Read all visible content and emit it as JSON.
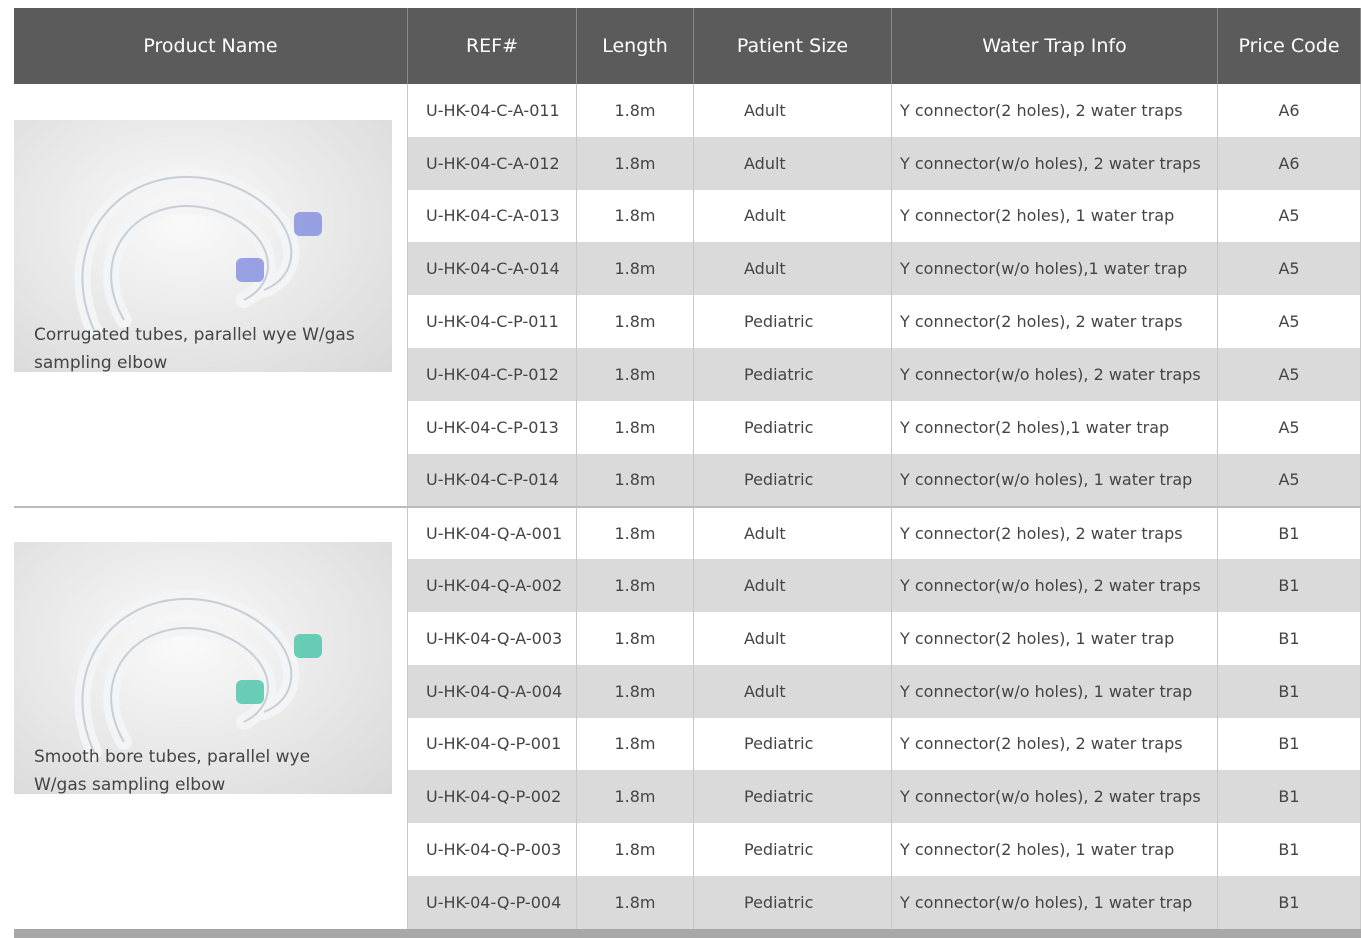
{
  "header": {
    "columns": [
      "Product Name",
      "REF#",
      "Length",
      "Patient Size",
      "Water Trap Info",
      "Price Code"
    ]
  },
  "groups": [
    {
      "description": "Corrugated tubes, parallel wye W/gas sampling elbow",
      "rows": [
        [
          "U-HK-04-C-A-011",
          "1.8m",
          "Adult",
          "Y connector(2 holes), 2 water traps",
          "A6"
        ],
        [
          "U-HK-04-C-A-012",
          "1.8m",
          "Adult",
          "Y connector(w/o holes), 2 water traps",
          "A6"
        ],
        [
          "U-HK-04-C-A-013",
          "1.8m",
          "Adult",
          "Y connector(2 holes), 1 water trap",
          "A5"
        ],
        [
          "U-HK-04-C-A-014",
          "1.8m",
          "Adult",
          "Y connector(w/o holes),1 water trap",
          "A5"
        ],
        [
          "U-HK-04-C-P-011",
          "1.8m",
          "Pediatric",
          "Y connector(2 holes), 2 water traps",
          "A5"
        ],
        [
          "U-HK-04-C-P-012",
          "1.8m",
          "Pediatric",
          "Y connector(w/o holes), 2 water traps",
          "A5"
        ],
        [
          "U-HK-04-C-P-013",
          "1.8m",
          "Pediatric",
          "Y connector(2 holes),1 water trap",
          "A5"
        ],
        [
          "U-HK-04-C-P-014",
          "1.8m",
          "Pediatric",
          "Y connector(w/o holes), 1 water trap",
          "A5"
        ]
      ]
    },
    {
      "description": "Smooth bore tubes, parallel wye W/gas sampling elbow",
      "rows": [
        [
          "U-HK-04-Q-A-001",
          "1.8m",
          "Adult",
          "Y connector(2 holes), 2 water traps",
          "B1"
        ],
        [
          "U-HK-04-Q-A-002",
          "1.8m",
          "Adult",
          "Y connector(w/o holes), 2 water traps",
          "B1"
        ],
        [
          "U-HK-04-Q-A-003",
          "1.8m",
          "Adult",
          "Y connector(2 holes), 1 water trap",
          "B1"
        ],
        [
          "U-HK-04-Q-A-004",
          "1.8m",
          "Adult",
          "Y connector(w/o holes), 1 water trap",
          "B1"
        ],
        [
          "U-HK-04-Q-P-001",
          "1.8m",
          "Pediatric",
          "Y connector(2 holes), 2 water traps",
          "B1"
        ],
        [
          "U-HK-04-Q-P-002",
          "1.8m",
          "Pediatric",
          "Y connector(w/o holes), 2 water traps",
          "B1"
        ],
        [
          "U-HK-04-Q-P-003",
          "1.8m",
          "Pediatric",
          "Y connector(2 holes), 1 water trap",
          "B1"
        ],
        [
          "U-HK-04-Q-P-004",
          "1.8m",
          "Pediatric",
          "Y connector(w/o holes), 1 water trap",
          "B1"
        ]
      ]
    }
  ]
}
